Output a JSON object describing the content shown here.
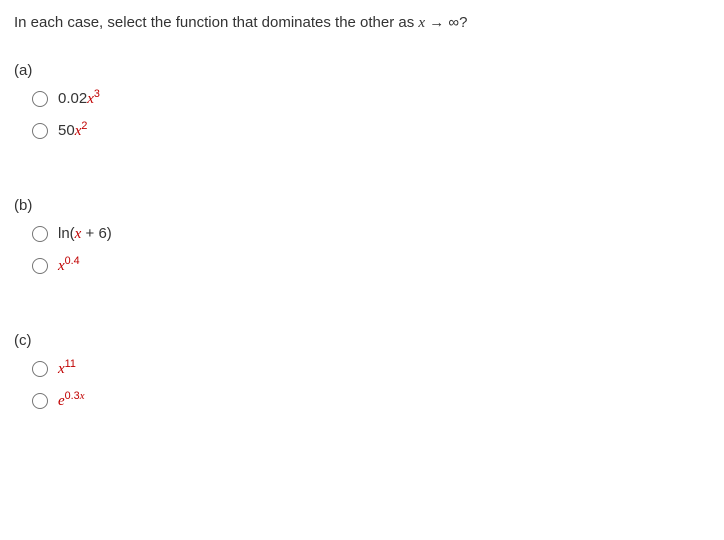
{
  "prompt": {
    "text_before": "In each case, select the function that dominates the other as ",
    "limit_var": "x",
    "arrow": " → ∞?",
    "text_color": "#333333"
  },
  "parts": [
    {
      "label": "(a)",
      "options": [
        {
          "coef": "0.02",
          "base": "x",
          "sup": "3"
        },
        {
          "coef": "50",
          "base": "x",
          "sup": "2"
        }
      ]
    },
    {
      "label": "(b)",
      "options": [
        {
          "full": "ln(x + 6)"
        },
        {
          "base": "x",
          "sup": "0.4"
        }
      ]
    },
    {
      "label": "(c)",
      "options": [
        {
          "base": "x",
          "sup": "11"
        },
        {
          "base": "e",
          "sup": "0.3x",
          "sup_italic_x": true
        }
      ]
    }
  ],
  "style": {
    "red": "#c00000",
    "body_font_size": 15,
    "sup_font_scale": 0.72
  }
}
